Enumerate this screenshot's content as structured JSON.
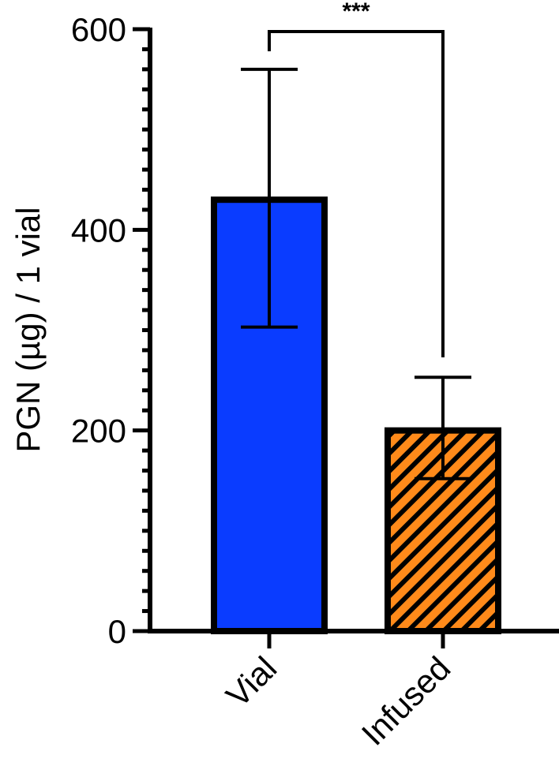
{
  "chart_data": {
    "type": "bar",
    "categories": [
      "Vial",
      "Infused"
    ],
    "values": [
      430,
      200
    ],
    "error_bars": {
      "upper": [
        560,
        253
      ],
      "lower": [
        303,
        152
      ]
    },
    "title": "",
    "xlabel": "",
    "ylabel": "PGN (µg) / 1 vial",
    "ylim": [
      0,
      600
    ],
    "yticks": [
      "0",
      "200",
      "400",
      "600"
    ],
    "grid": false,
    "legend": "none",
    "bar_styles": [
      {
        "fill": "#0a3cff",
        "pattern": "solid"
      },
      {
        "fill": "#ff8a1a",
        "pattern": "diagonal-hatch"
      }
    ],
    "significance": {
      "label": "***",
      "between": [
        "Vial",
        "Infused"
      ]
    }
  }
}
